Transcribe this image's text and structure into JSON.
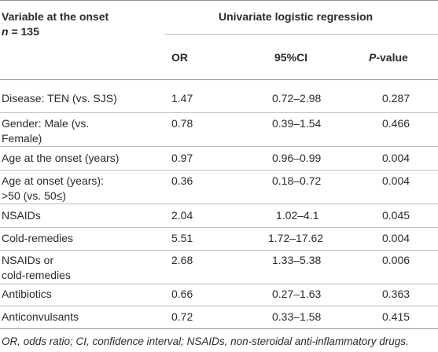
{
  "header": {
    "var_line1": "Variable at the onset",
    "var_line2_n": "n",
    "var_line2_rest": " = 135",
    "group": "Univariate logistic regression",
    "col_or": "OR",
    "col_ci": "95%CI",
    "col_p_italic": "P",
    "col_p_rest": "-value"
  },
  "rows": [
    {
      "var": [
        "Disease: TEN (vs. SJS)"
      ],
      "or": "1.47",
      "ci": "0.72–2.98",
      "p": "0.287"
    },
    {
      "var": [
        "Gender: Male (vs.",
        "Female)"
      ],
      "or": "0.78",
      "ci": "0.39–1.54",
      "p": "0.466"
    },
    {
      "var": [
        "Age at the onset (years)"
      ],
      "or": "0.97",
      "ci": "0.96–0.99",
      "p": "0.004"
    },
    {
      "var": [
        "Age at onset (years):",
        ">50 (vs. 50≤)"
      ],
      "or": "0.36",
      "ci": "0.18–0.72",
      "p": "0.004"
    },
    {
      "var": [
        "NSAIDs"
      ],
      "or": "2.04",
      "ci": "1.02–4.1",
      "p": "0.045"
    },
    {
      "var": [
        "Cold-remedies"
      ],
      "or": "5.51",
      "ci": "1.72–17.62",
      "p": "0.004"
    },
    {
      "var": [
        "NSAIDs or",
        "cold-remedies"
      ],
      "or": "2.68",
      "ci": "1.33–5.38",
      "p": "0.006"
    },
    {
      "var": [
        "Antibiotics"
      ],
      "or": "0.66",
      "ci": "0.27–1.63",
      "p": "0.363"
    },
    {
      "var": [
        "Anticonvulsants"
      ],
      "or": "0.72",
      "ci": "0.33–1.58",
      "p": "0.415"
    }
  ],
  "footnote": "OR, odds ratio; CI, confidence interval; NSAIDs, non-steroidal anti-inflammatory drugs."
}
